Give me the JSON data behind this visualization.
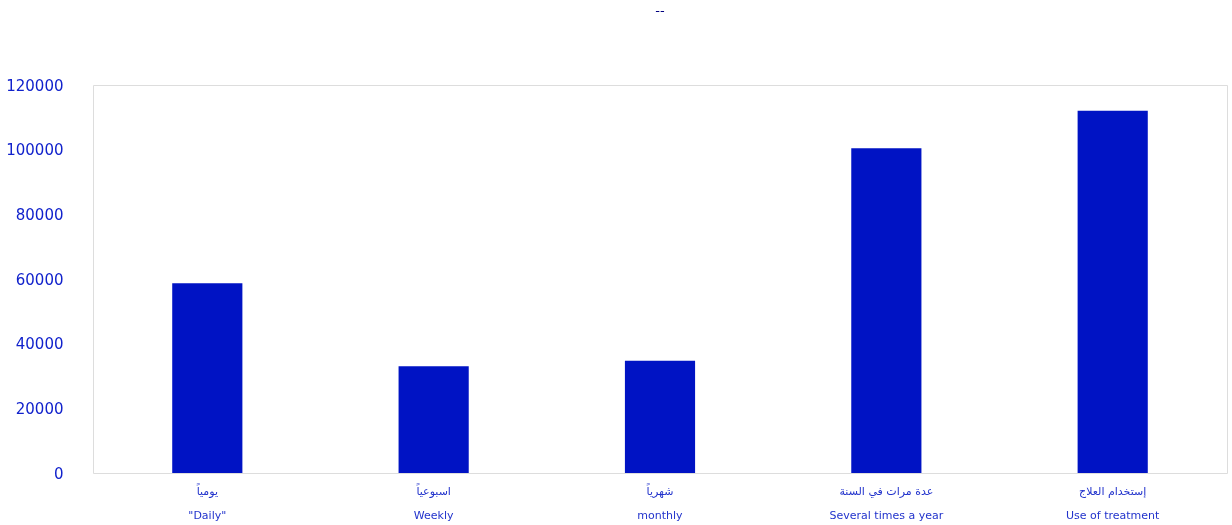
{
  "chart_data": {
    "type": "bar",
    "title": "--",
    "categories": [
      "يومياً\n\"Daily\"",
      "اسبوعياً\nWeekly",
      "شهرياً\nmonthly",
      "عدة مرات في السنة\nSeveral times a year",
      "إستخدام العلاج\nUse of treatment"
    ],
    "values": [
      58700,
      33000,
      34700,
      100400,
      112000
    ],
    "color": "#0013c4",
    "ylim": [
      0,
      120000
    ],
    "yticks": [
      0,
      20000,
      40000,
      60000,
      80000,
      100000,
      120000
    ],
    "grid": false
  }
}
